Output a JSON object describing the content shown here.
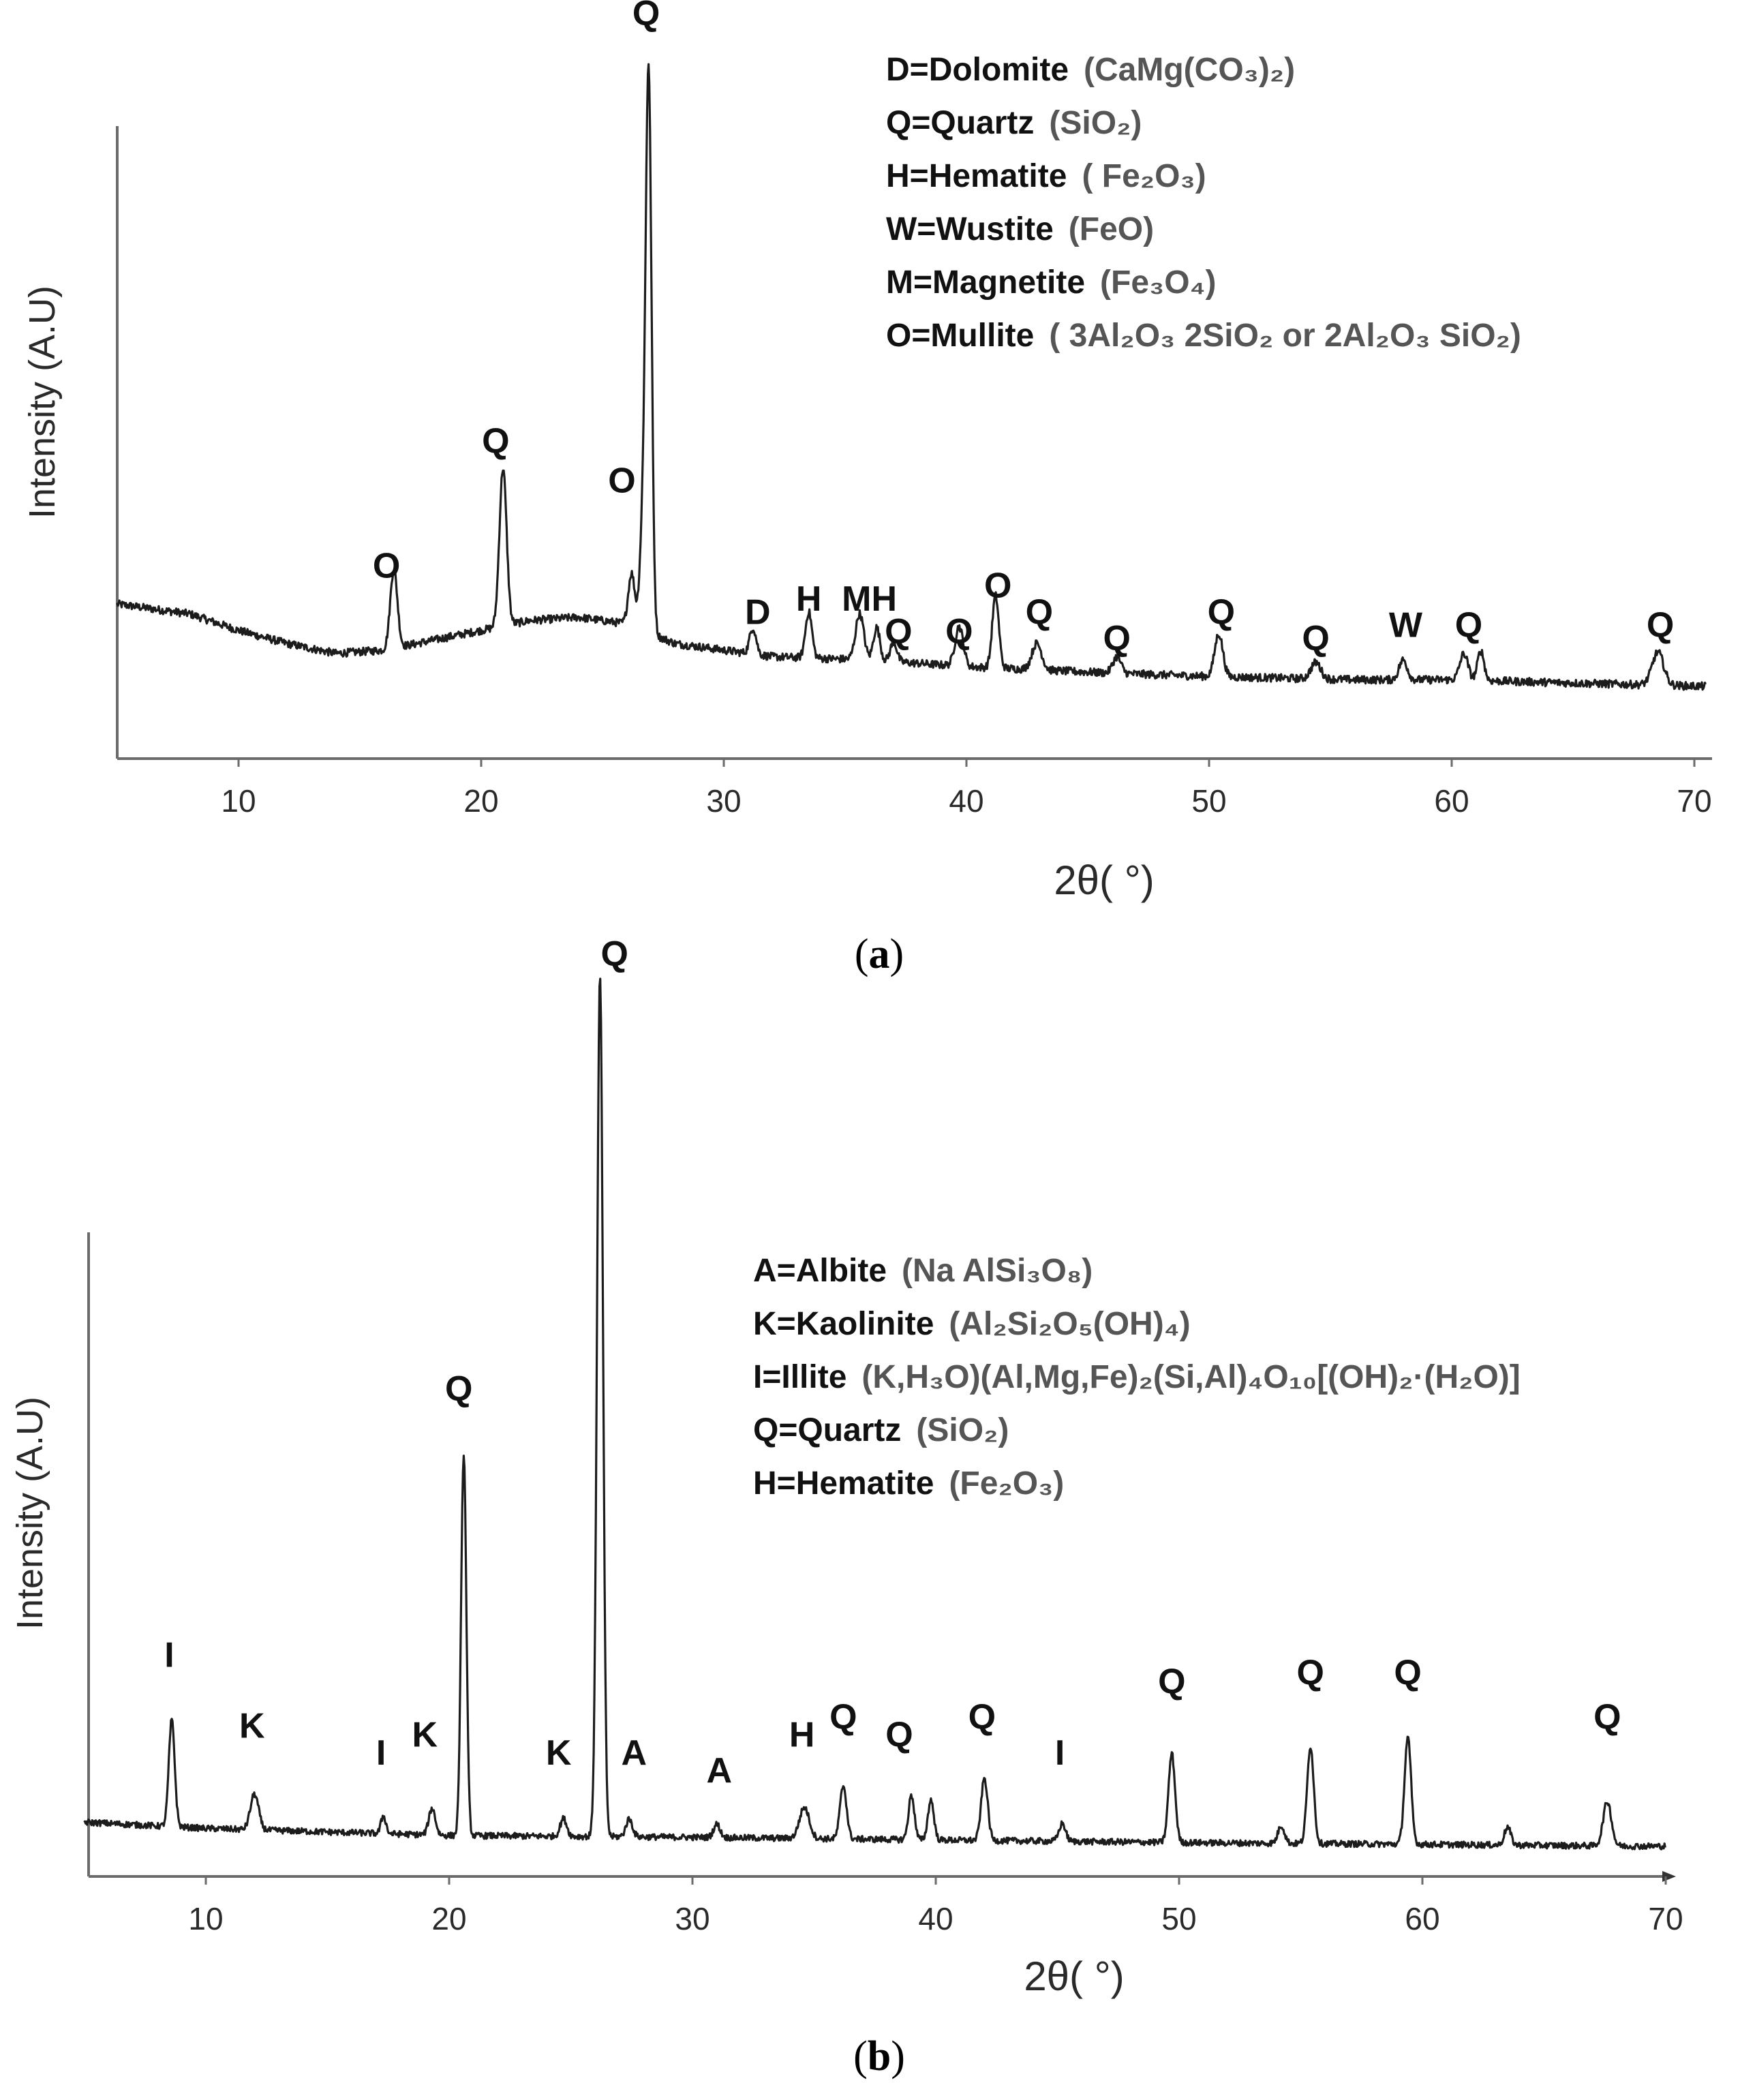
{
  "chart_data": [
    {
      "type": "line",
      "panel_label_prefix": "(",
      "panel_label_letter": "a",
      "panel_label_suffix": ")",
      "xlabel": "2θ( °)",
      "ylabel": "Intensity (A.U)",
      "xlim": [
        5,
        70.5
      ],
      "ylim": [
        0,
        100
      ],
      "xticks": [
        10,
        20,
        30,
        40,
        50,
        60,
        70
      ],
      "legend": [
        {
          "abbr": "D=Dolomite",
          "formula": "(CaMg(CO₃)₂)"
        },
        {
          "abbr": "Q=Quartz",
          "formula": "(SiO₂)"
        },
        {
          "abbr": "H=Hematite",
          "formula": "( Fe₂O₃)"
        },
        {
          "abbr": "W=Wustite",
          "formula": "(FeO)"
        },
        {
          "abbr": "M=Magnetite",
          "formula": "(Fe₃O₄)"
        },
        {
          "abbr": "O=Mullite",
          "formula": "( 3Al₂O₃ 2SiO₂ or 2Al₂O₃ SiO₂)"
        }
      ],
      "background": [
        [
          5,
          18
        ],
        [
          8,
          16.5
        ],
        [
          10,
          14
        ],
        [
          12,
          12
        ],
        [
          14,
          10.5
        ],
        [
          16,
          11
        ],
        [
          18,
          12.5
        ],
        [
          20,
          14
        ],
        [
          22,
          15.5
        ],
        [
          24,
          16
        ],
        [
          26,
          15
        ],
        [
          28,
          12
        ],
        [
          30,
          11
        ],
        [
          32,
          10
        ],
        [
          36,
          9.5
        ],
        [
          40,
          8.5
        ],
        [
          46,
          7.5
        ],
        [
          50,
          7
        ],
        [
          56,
          6.5
        ],
        [
          60,
          6.5
        ],
        [
          65,
          6
        ],
        [
          70.5,
          5.5
        ]
      ],
      "peaks": [
        {
          "x": 16.4,
          "h": 12,
          "w": 0.22
        },
        {
          "x": 20.9,
          "h": 24,
          "w": 0.22
        },
        {
          "x": 26.2,
          "h": 8,
          "w": 0.2
        },
        {
          "x": 26.65,
          "h": 14,
          "w": 0.18
        },
        {
          "x": 26.9,
          "h": 85,
          "w": 0.18
        },
        {
          "x": 31.2,
          "h": 4,
          "w": 0.2
        },
        {
          "x": 33.5,
          "h": 7,
          "w": 0.2
        },
        {
          "x": 35.6,
          "h": 7,
          "w": 0.25
        },
        {
          "x": 36.3,
          "h": 5,
          "w": 0.2
        },
        {
          "x": 37.0,
          "h": 3,
          "w": 0.2
        },
        {
          "x": 39.7,
          "h": 6,
          "w": 0.25
        },
        {
          "x": 41.2,
          "h": 11,
          "w": 0.2
        },
        {
          "x": 42.9,
          "h": 4,
          "w": 0.3
        },
        {
          "x": 46.2,
          "h": 2.5,
          "w": 0.25
        },
        {
          "x": 50.4,
          "h": 6.5,
          "w": 0.25
        },
        {
          "x": 54.4,
          "h": 2.5,
          "w": 0.3
        },
        {
          "x": 58.0,
          "h": 3,
          "w": 0.25
        },
        {
          "x": 60.5,
          "h": 4,
          "w": 0.25
        },
        {
          "x": 61.2,
          "h": 4.5,
          "w": 0.2
        },
        {
          "x": 68.5,
          "h": 5,
          "w": 0.35
        }
      ],
      "annotations": [
        {
          "label": "O",
          "x": 16.1,
          "y": 22
        },
        {
          "label": "Q",
          "x": 20.6,
          "y": 41
        },
        {
          "label": "O",
          "x": 25.8,
          "y": 35
        },
        {
          "label": "Q",
          "x": 26.8,
          "y": 106
        },
        {
          "label": "D",
          "x": 31.4,
          "y": 15
        },
        {
          "label": "H",
          "x": 33.5,
          "y": 17
        },
        {
          "label": "MH",
          "x": 36.0,
          "y": 17
        },
        {
          "label": "Q",
          "x": 37.2,
          "y": 12
        },
        {
          "label": "Q",
          "x": 39.7,
          "y": 12
        },
        {
          "label": "O",
          "x": 41.3,
          "y": 19
        },
        {
          "label": "Q",
          "x": 43.0,
          "y": 15
        },
        {
          "label": "Q",
          "x": 46.2,
          "y": 11
        },
        {
          "label": "Q",
          "x": 50.5,
          "y": 15
        },
        {
          "label": "Q",
          "x": 54.4,
          "y": 11
        },
        {
          "label": "W",
          "x": 58.1,
          "y": 13
        },
        {
          "label": "Q",
          "x": 60.7,
          "y": 13
        },
        {
          "label": "Q",
          "x": 68.6,
          "y": 13
        }
      ]
    },
    {
      "type": "line",
      "panel_label_prefix": "(",
      "panel_label_letter": "b",
      "panel_label_suffix": ")",
      "xlabel": "2θ( °)",
      "ylabel": "Intensity (A.U)",
      "xlim": [
        5,
        70
      ],
      "ylim": [
        0,
        100
      ],
      "xticks": [
        10,
        20,
        30,
        40,
        50,
        60,
        70
      ],
      "legend": [
        {
          "abbr": "A=Albite",
          "formula": "(Na AlSi₃O₈)"
        },
        {
          "abbr": "K=Kaolinite",
          "formula": "(Al₂Si₂O₅(OH)₄)"
        },
        {
          "abbr": "I=Illite",
          "formula": "(K,H₃O)(Al,Mg,Fe)₂(Si,Al)₄O₁₀[(OH)₂·(H₂O)]"
        },
        {
          "abbr": "Q=Quartz",
          "formula": "(SiO₂)"
        },
        {
          "abbr": "H=Hematite",
          "formula": "(Fe₂O₃)"
        }
      ],
      "background": [
        [
          5,
          4.5
        ],
        [
          10,
          3.8
        ],
        [
          20,
          3
        ],
        [
          30,
          2.8
        ],
        [
          40,
          2.5
        ],
        [
          50,
          2.2
        ],
        [
          60,
          2
        ],
        [
          69,
          1.8
        ]
      ],
      "peaks": [
        {
          "x": 8.6,
          "h": 12,
          "w": 0.18
        },
        {
          "x": 12.0,
          "h": 4,
          "w": 0.25
        },
        {
          "x": 17.3,
          "h": 2,
          "w": 0.15
        },
        {
          "x": 19.3,
          "h": 3,
          "w": 0.2
        },
        {
          "x": 20.6,
          "h": 43,
          "w": 0.16
        },
        {
          "x": 24.7,
          "h": 2,
          "w": 0.2
        },
        {
          "x": 26.2,
          "h": 97,
          "w": 0.18
        },
        {
          "x": 27.4,
          "h": 2,
          "w": 0.2
        },
        {
          "x": 31.0,
          "h": 1.5,
          "w": 0.2
        },
        {
          "x": 34.6,
          "h": 3.5,
          "w": 0.3
        },
        {
          "x": 36.2,
          "h": 6,
          "w": 0.2
        },
        {
          "x": 39.0,
          "h": 5,
          "w": 0.18
        },
        {
          "x": 39.8,
          "h": 4.5,
          "w": 0.18
        },
        {
          "x": 42.0,
          "h": 7,
          "w": 0.2
        },
        {
          "x": 45.2,
          "h": 2,
          "w": 0.2
        },
        {
          "x": 49.7,
          "h": 10,
          "w": 0.2
        },
        {
          "x": 54.2,
          "h": 2,
          "w": 0.2
        },
        {
          "x": 55.4,
          "h": 11,
          "w": 0.2
        },
        {
          "x": 59.4,
          "h": 12,
          "w": 0.2
        },
        {
          "x": 63.5,
          "h": 2,
          "w": 0.2
        },
        {
          "x": 67.6,
          "h": 5,
          "w": 0.25
        }
      ],
      "annotations": [
        {
          "label": "I",
          "x": 8.5,
          "y": 22
        },
        {
          "label": "K",
          "x": 11.9,
          "y": 14
        },
        {
          "label": "I",
          "x": 17.2,
          "y": 11
        },
        {
          "label": "K",
          "x": 19.0,
          "y": 13
        },
        {
          "label": "Q",
          "x": 20.4,
          "y": 52
        },
        {
          "label": "K",
          "x": 24.5,
          "y": 11
        },
        {
          "label": "Q",
          "x": 26.8,
          "y": 101
        },
        {
          "label": "A",
          "x": 27.6,
          "y": 11
        },
        {
          "label": "A",
          "x": 31.1,
          "y": 9
        },
        {
          "label": "H",
          "x": 34.5,
          "y": 13
        },
        {
          "label": "Q",
          "x": 36.2,
          "y": 15
        },
        {
          "label": "Q",
          "x": 38.5,
          "y": 13
        },
        {
          "label": "Q",
          "x": 41.9,
          "y": 15
        },
        {
          "label": "I",
          "x": 45.1,
          "y": 11
        },
        {
          "label": "Q",
          "x": 49.7,
          "y": 19
        },
        {
          "label": "Q",
          "x": 55.4,
          "y": 20
        },
        {
          "label": "Q",
          "x": 59.4,
          "y": 20
        },
        {
          "label": "Q",
          "x": 67.6,
          "y": 15
        }
      ]
    }
  ]
}
